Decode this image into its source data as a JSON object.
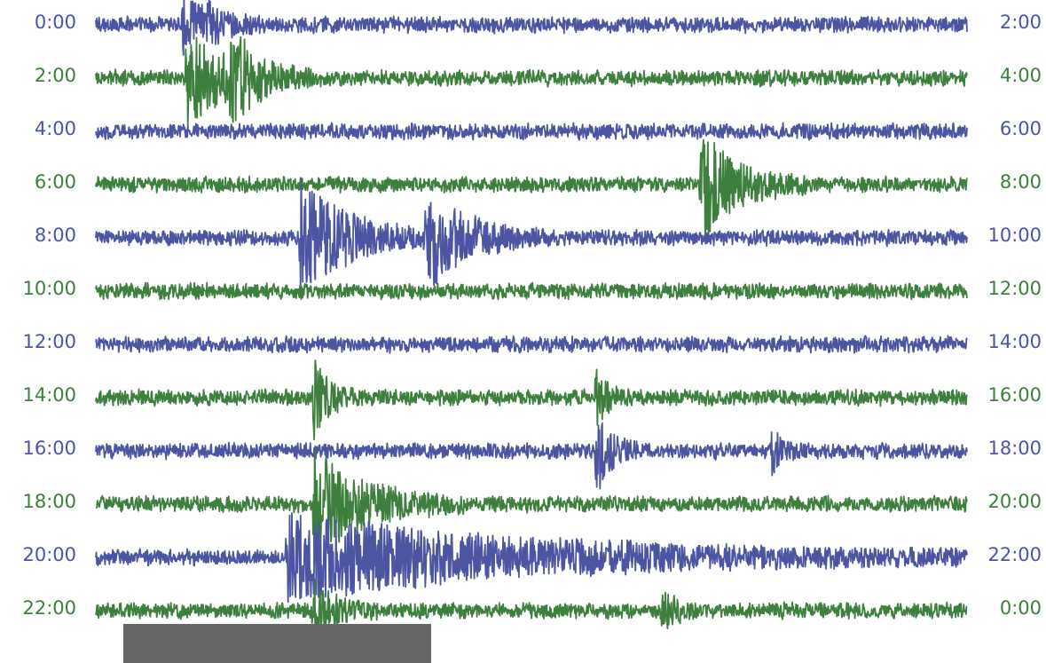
{
  "chart_data": {
    "type": "line",
    "title": "",
    "xlabel": "",
    "ylabel": "",
    "colors": [
      "#4b55a2",
      "#3d7f3c"
    ],
    "rows": [
      {
        "left": "0:00",
        "right": "2:00",
        "events": [
          {
            "x": 0.1,
            "amp": 28,
            "dur": 0.04
          },
          {
            "x": 0.13,
            "amp": 10,
            "dur": 0.02
          }
        ]
      },
      {
        "left": "2:00",
        "right": "4:00",
        "events": [
          {
            "x": 0.105,
            "amp": 55,
            "dur": 0.06
          },
          {
            "x": 0.155,
            "amp": 40,
            "dur": 0.03
          }
        ]
      },
      {
        "left": "4:00",
        "right": "6:00",
        "events": []
      },
      {
        "left": "6:00",
        "right": "8:00",
        "events": [
          {
            "x": 0.695,
            "amp": 60,
            "dur": 0.05
          }
        ]
      },
      {
        "left": "8:00",
        "right": "10:00",
        "events": [
          {
            "x": 0.235,
            "amp": 60,
            "dur": 0.07
          },
          {
            "x": 0.38,
            "amp": 50,
            "dur": 0.06
          }
        ]
      },
      {
        "left": "10:00",
        "right": "12:00",
        "events": []
      },
      {
        "left": "12:00",
        "right": "14:00",
        "events": []
      },
      {
        "left": "14:00",
        "right": "16:00",
        "events": [
          {
            "x": 0.25,
            "amp": 42,
            "dur": 0.02
          },
          {
            "x": 0.575,
            "amp": 30,
            "dur": 0.015
          }
        ]
      },
      {
        "left": "16:00",
        "right": "18:00",
        "events": [
          {
            "x": 0.575,
            "amp": 50,
            "dur": 0.02
          },
          {
            "x": 0.775,
            "amp": 25,
            "dur": 0.015
          }
        ]
      },
      {
        "left": "18:00",
        "right": "20:00",
        "events": [
          {
            "x": 0.25,
            "amp": 60,
            "dur": 0.07
          }
        ]
      },
      {
        "left": "20:00",
        "right": "22:00",
        "events": [
          {
            "x": 0.22,
            "amp": 45,
            "dur": 0.32
          }
        ]
      },
      {
        "left": "22:00",
        "right": "0:00",
        "events": [
          {
            "x": 0.25,
            "amp": 30,
            "dur": 0.03
          },
          {
            "x": 0.65,
            "amp": 20,
            "dur": 0.02
          }
        ]
      }
    ]
  }
}
